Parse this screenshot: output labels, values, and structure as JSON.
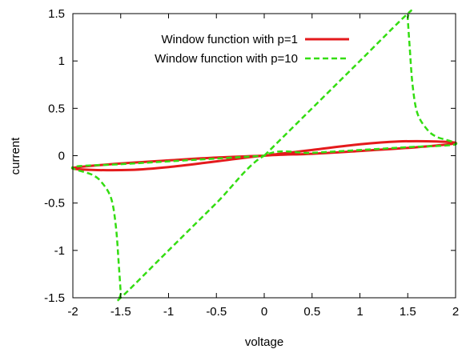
{
  "chart_data": {
    "type": "line",
    "xlabel": "voltage",
    "ylabel": "current",
    "xlim": [
      -2,
      2
    ],
    "ylim": [
      -1.5,
      1.5
    ],
    "x_ticks": [
      "-2",
      "-1.5",
      "-1",
      "-0.5",
      "0",
      "0.5",
      "1",
      "1.5",
      "2"
    ],
    "y_ticks": [
      "1.5",
      "1",
      "0.5",
      "0",
      "-0.5",
      "-1",
      "-1.5"
    ],
    "grid": false,
    "legend_position": "top-left",
    "series": [
      {
        "name": "Window function with p=1",
        "color": "#e41a1c",
        "style": "solid",
        "x": [
          0,
          0.5,
          1.0,
          1.4,
          1.8,
          2.0,
          1.6,
          1.0,
          0.5,
          0,
          -0.5,
          -1.0,
          -1.4,
          -1.8,
          -2.0,
          -1.6,
          -1.0,
          -0.5,
          0
        ],
        "y": [
          0,
          0.06,
          0.12,
          0.15,
          0.15,
          0.13,
          0.09,
          0.05,
          0.02,
          0,
          -0.06,
          -0.12,
          -0.15,
          -0.15,
          -0.13,
          -0.09,
          -0.05,
          -0.02,
          0
        ]
      },
      {
        "name": "Window function with p=10",
        "color": "#33dd11",
        "style": "dashed",
        "x": [
          0,
          0.5,
          1.0,
          1.5,
          1.5,
          1.52,
          1.55,
          1.6,
          1.7,
          1.8,
          2.0,
          1.5,
          1.0,
          0.5,
          0,
          -0.5,
          -1.0,
          -1.5,
          -1.5,
          -1.52,
          -1.55,
          -1.6,
          -1.7,
          -1.8,
          -2.0,
          -1.5,
          -1.0,
          -0.5,
          0
        ],
        "y": [
          0,
          0.5,
          1.0,
          1.5,
          1.45,
          1.15,
          0.75,
          0.45,
          0.28,
          0.2,
          0.12,
          0.09,
          0.06,
          0.03,
          0,
          -0.5,
          -1.0,
          -1.5,
          -1.45,
          -1.15,
          -0.75,
          -0.45,
          -0.28,
          -0.2,
          -0.12,
          -0.09,
          -0.06,
          -0.03,
          0
        ]
      }
    ]
  }
}
